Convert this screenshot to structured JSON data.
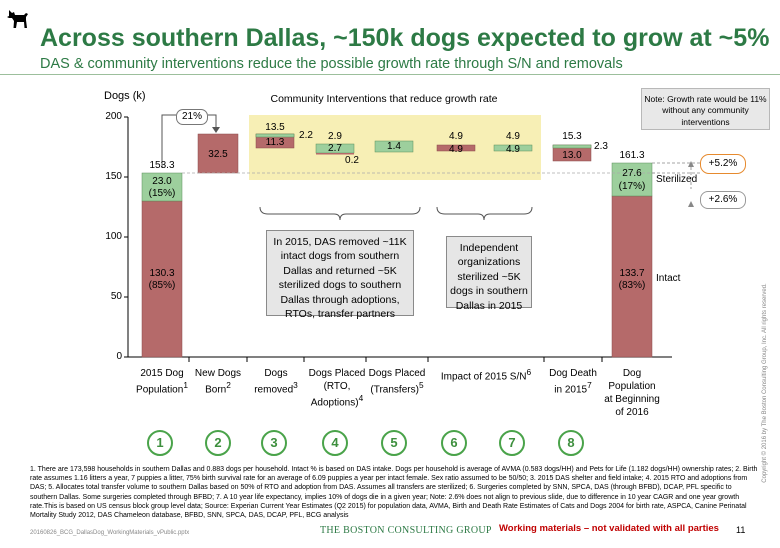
{
  "header": {
    "title": "Across southern Dallas, ~150k dogs expected to grow at ~5%",
    "subtitle": "DAS & community interventions reduce the possible growth rate through S/N and removals"
  },
  "logo": {
    "icon": "dog-silhouette-icon",
    "color": "#000000"
  },
  "colors": {
    "brand_green": "#2d7a45",
    "intact_bar": "#b56a6a",
    "sterilized_bar": "#9dcf9d",
    "bar_outline": "#5a8f5a",
    "highlight": "#f7efb5",
    "warning_red": "#c00000",
    "bubble_orange": "#e68a2e"
  },
  "note_box": "Note: Growth rate would be 11% without any community interventions",
  "community_label": "Community Interventions that reduce growth rate",
  "growth_bubble": "21%",
  "callout_das": "In 2015, DAS removed ~11K intact dogs from southern Dallas and returned ~5K sterilized dogs to southern Dallas through adoptions, RTOs, transfer partners",
  "callout_community": "Independent organizations sterilized ~5K dogs in southern Dallas in 2015",
  "growth_total_label": "+5.2%",
  "growth_sterilized_label": "+2.6%",
  "chart_data": {
    "type": "waterfall",
    "ylabel": "Dogs (k)",
    "ylim": [
      0,
      200
    ],
    "yticks": [
      0,
      50,
      100,
      150,
      200
    ],
    "categories": [
      {
        "num": "1",
        "label": "2015 Dog Population",
        "sup": "1"
      },
      {
        "num": "2",
        "label": "New Dogs Born",
        "sup": "2"
      },
      {
        "num": "3",
        "label": "Dogs removed",
        "sup": "3"
      },
      {
        "num": "4",
        "label": "Dogs Placed (RTO, Adoptions)",
        "sup": "4"
      },
      {
        "num": "5",
        "label": "Dogs Placed (Transfers)",
        "sup": "5"
      },
      {
        "num": "6",
        "label": "Impact of 2015 S/N",
        "sup": "6"
      },
      {
        "num": "7",
        "label": "",
        "sup": ""
      },
      {
        "num": "8",
        "label": "Dog Death in 2015",
        "sup": "7"
      },
      {
        "num": "",
        "label": "Dog Population at Beginning of 2016",
        "sup": ""
      }
    ],
    "start": {
      "total": 153.3,
      "total_label": "153.3",
      "intact": 130.3,
      "intact_label": "130.3",
      "intact_pct": "(85%)",
      "sterilized": 23.0,
      "sterilized_label": "23.0",
      "sterilized_pct": "(15%)"
    },
    "steps": [
      {
        "name": "New Dogs Born",
        "kind": "intact",
        "from": 153.3,
        "to": 185.8,
        "inner": "32.5",
        "outer": ""
      },
      {
        "name": "Dogs removed",
        "kind": "intact",
        "from": 185.8,
        "to": 174.5,
        "inner": "11.3",
        "outer": "13.5"
      },
      {
        "name": "Dogs removed (sterilized)",
        "kind": "sterilized",
        "from": 174.5,
        "to": 172.3,
        "inner": "",
        "outer": "2.2"
      },
      {
        "name": "Dogs Placed (RTO, Adoptions) intact",
        "kind": "intact",
        "from": 172.3,
        "to": 172.5,
        "inner": "",
        "outer": "0.2"
      },
      {
        "name": "Dogs Placed (RTO, Adoptions) sterilized",
        "kind": "sterilized",
        "from": 172.5,
        "to": 175.2,
        "inner": "2.7",
        "outer": "2.9"
      },
      {
        "name": "Dogs Placed (Transfers)",
        "kind": "sterilized",
        "from": 175.2,
        "to": 176.6,
        "inner": "1.4",
        "outer": ""
      },
      {
        "name": "Impact of 2015 S/N",
        "kind": "intact",
        "from": 176.6,
        "to": 171.7,
        "inner": "4.9",
        "outer": "4.9"
      },
      {
        "name": "Impact of 2015 S/N sterilized",
        "kind": "sterilized",
        "from": 171.7,
        "to": 176.6,
        "inner": "4.9",
        "outer": "4.9"
      },
      {
        "name": "Dog Death intact",
        "kind": "intact",
        "from": 176.6,
        "to": 163.6,
        "inner": "13.0",
        "outer": "15.3"
      },
      {
        "name": "Dog Death sterilized",
        "kind": "sterilized",
        "from": 163.6,
        "to": 161.3,
        "inner": "",
        "outer": "2.3"
      }
    ],
    "end": {
      "total": 161.3,
      "total_label": "161.3",
      "intact": 133.7,
      "intact_label": "133.7",
      "intact_pct": "(83%)",
      "sterilized": 27.6,
      "sterilized_label": "27.6",
      "sterilized_pct": "(17%)"
    },
    "legend": {
      "sterilized": "Sterilized",
      "intact": "Intact"
    }
  },
  "footnotes": "1. There are 173,598 households in southern Dallas and 0.883 dogs per household. Intact % is based on DAS intake. Dogs per household is average of AVMA (0.583 dogs/HH) and Pets for Life (1.182 dogs/HH) ownership rates; 2. Birth rate assumes 1.16 litters a year, 7 puppies a litter, 75% birth survival rate for an average of 6.09 puppies a year per intact female. Sex ratio assumed to be 50/50; 3. 2015 DAS shelter and field intake; 4. 2015 RTO and adoptions from DAS; 5. Allocates total transfer volume to southern Dallas based on 50% of RTO and adoption from DAS. Assumes all transfers are sterilized; 6. Surgeries completed by SNN, SPCA, DAS (through BFBD), DCAP, PFL specific to southern Dallas. Some surgeries completed through BFBD; 7. A 10 year life expectancy, implies 10% of dogs die in a given year; Note: 2.6% does not align to previous slide, due to difference in 10 year CAGR and one year growth rate.This is based on US census block group level data; Source: Experian Current Year Estimates (Q2 2015) for population data, AVMA, Birth and Death Rate Estimates of Cats and Dogs 2004 for birth rate, ASPCA, Canine Perinatal Mortality Study 2012, DAS Chameleon database, BFBD, SNN, SPCA, DAS, DCAP, PFL, BCG analysis",
  "footer": {
    "file": "20160826_BCG_DallasDog_WorkingMaterials_vPublic.pptx",
    "brand": "THE BOSTON CONSULTING GROUP",
    "working": "Working materials – not validated with all parties",
    "page": "11",
    "copyright": "Copyright © 2016 by The Boston Consulting Group, Inc. All rights reserved."
  }
}
